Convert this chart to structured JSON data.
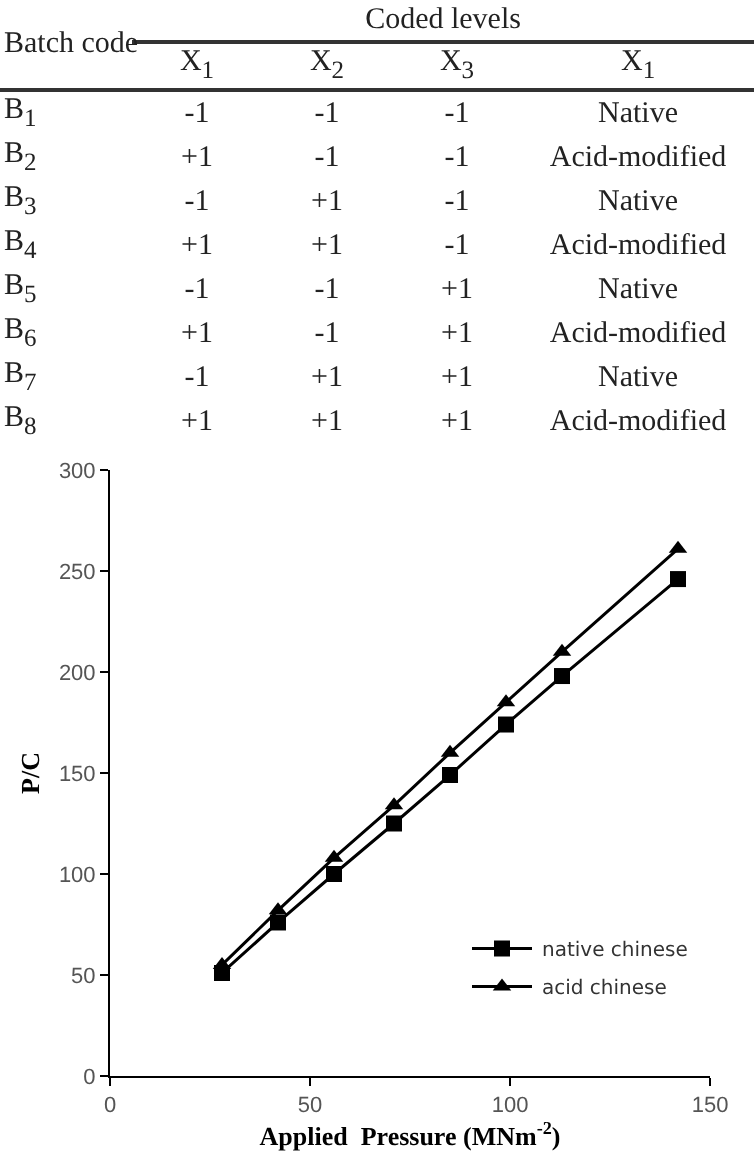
{
  "chart_data": [
    {
      "type": "heatmap",
      "title": "Coded levels",
      "ylabel": "Batch code",
      "categories": [
        "X$_{1}$",
        "X$_{2}$",
        "X$_{3}$",
        "X$_{1}$"
      ],
      "y_categories": [
        "B$_{1}$",
        "B$_{2}$",
        "B$_{3}$",
        "B$_{4}$",
        "B$_{5}$",
        "B$_{6}$",
        "B$_{7}$",
        "B$_{8}$"
      ],
      "cells": [
        [
          null,
          null,
          null,
          null
        ],
        [
          null,
          null,
          null,
          null
        ],
        [
          null,
          null,
          null,
          null
        ],
        [
          null,
          null,
          null,
          null
        ],
        [
          null,
          null,
          null,
          null
        ],
        [
          null,
          null,
          null,
          null
        ],
        [
          null,
          null,
          null,
          null
        ],
        [
          null,
          null,
          null,
          null
        ]
      ],
      "cell_labels": [
        [
          "-1",
          "-1",
          "-1",
          "Native"
        ],
        [
          "+1",
          "-1",
          "-1",
          "Acid-modified"
        ],
        [
          "-1",
          "+1",
          "-1",
          "Native"
        ],
        [
          "+1",
          "+1",
          "-1",
          "Acid-modified"
        ],
        [
          "-1",
          "-1",
          "+1",
          "Native"
        ],
        [
          "+1",
          "-1",
          "+1",
          "Acid-modified"
        ],
        [
          "-1",
          "+1",
          "+1",
          "Native"
        ],
        [
          "+1",
          "+1",
          "+1",
          "Acid-modified"
        ]
      ]
    },
    {
      "type": "line",
      "xlabel": "Applied  Pressure (MNm$^{-2}$)",
      "ylabel": "P/C",
      "x": [
        28,
        42,
        56,
        71,
        85,
        99,
        113,
        142
      ],
      "series": [
        {
          "name": "native chinese",
          "color": "#000000",
          "marker": "square",
          "values": [
            51,
            76,
            100,
            125,
            149,
            174,
            198,
            246
          ]
        },
        {
          "name": "acid chinese",
          "color": "#000000",
          "marker": "triangle",
          "values": [
            55,
            82,
            108,
            134,
            160,
            185,
            210,
            261
          ]
        }
      ],
      "xlim": [
        0,
        150
      ],
      "xticks": [
        0,
        50,
        100,
        150
      ],
      "ylim": [
        0,
        300
      ],
      "yticks": [
        0,
        50,
        100,
        150,
        200,
        250,
        300
      ],
      "grid": false,
      "legend": "bottom right",
      "line_style": "solid"
    }
  ]
}
